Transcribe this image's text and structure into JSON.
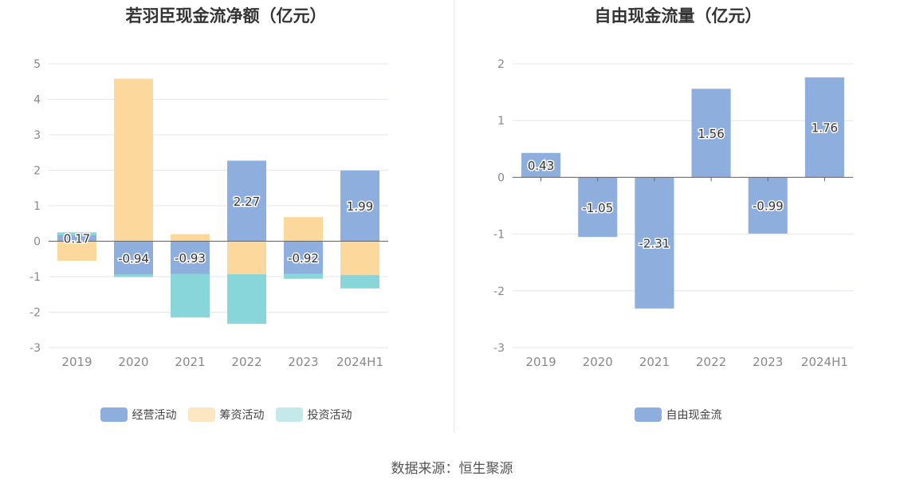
{
  "source": "数据来源：恒生聚源",
  "colors": {
    "operating": "#8eaedd",
    "financing": "#fdd89c",
    "investing": "#88d6da",
    "fcf": "#8eaedd"
  },
  "chart_data": [
    {
      "type": "bar",
      "stacked": true,
      "title": "若羽臣现金流净额（亿元）",
      "categories": [
        "2019",
        "2020",
        "2021",
        "2022",
        "2023",
        "2024H1"
      ],
      "yticks": [
        5,
        4,
        3,
        2,
        1,
        0,
        -1,
        -2,
        -3
      ],
      "ylim": [
        -3,
        5
      ],
      "grid": true,
      "legend": "bottom",
      "series": [
        {
          "name": "经营活动",
          "values": [
            0.17,
            -0.94,
            -0.93,
            2.27,
            -0.92,
            1.99
          ],
          "labels": [
            "0.17",
            "-0.94",
            "-0.93",
            "2.27",
            "-0.92",
            "1.99"
          ]
        },
        {
          "name": "筹资活动",
          "values": [
            -0.55,
            4.58,
            0.2,
            -0.93,
            0.68,
            -0.95
          ]
        },
        {
          "name": "投资活动",
          "values": [
            0.08,
            -0.07,
            -1.22,
            -1.4,
            -0.14,
            -0.38
          ]
        }
      ]
    },
    {
      "type": "bar",
      "title": "自由现金流量（亿元）",
      "categories": [
        "2019",
        "2020",
        "2021",
        "2022",
        "2023",
        "2024H1"
      ],
      "yticks": [
        2,
        1,
        0,
        -1,
        -2,
        -3
      ],
      "ylim": [
        -3,
        2
      ],
      "grid": true,
      "legend": "bottom",
      "series": [
        {
          "name": "自由现金流",
          "values": [
            0.43,
            -1.05,
            -2.31,
            1.56,
            -0.99,
            1.76
          ],
          "labels": [
            "0.43",
            "-1.05",
            "-2.31",
            "1.56",
            "-0.99",
            "1.76"
          ]
        }
      ]
    }
  ]
}
